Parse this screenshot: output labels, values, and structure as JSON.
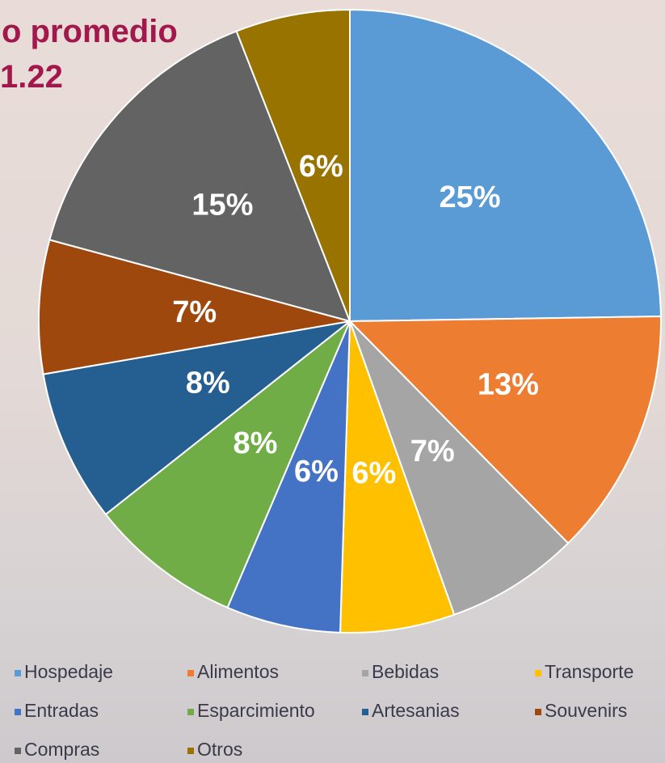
{
  "chart_data": {
    "type": "pie",
    "title": "o promedio",
    "subtitle": "1.22",
    "categories": [
      "Hospedaje",
      "Alimentos",
      "Bebidas",
      "Transporte",
      "Entradas",
      "Esparcimiento",
      "Artesanias",
      "Souvenirs",
      "Compras",
      "Otros"
    ],
    "values": [
      25,
      13,
      7,
      6,
      6,
      8,
      8,
      7,
      15,
      6
    ],
    "value_labels": [
      "25%",
      "13%",
      "7%",
      "6%",
      "6%",
      "8%",
      "8%",
      "7%",
      "15%",
      "6%"
    ],
    "colors": [
      "#5b9bd5",
      "#ed7d31",
      "#a5a5a5",
      "#ffc000",
      "#4472c4",
      "#70ad47",
      "#255e91",
      "#9e480e",
      "#636363",
      "#997300"
    ],
    "legend": "bottom"
  }
}
